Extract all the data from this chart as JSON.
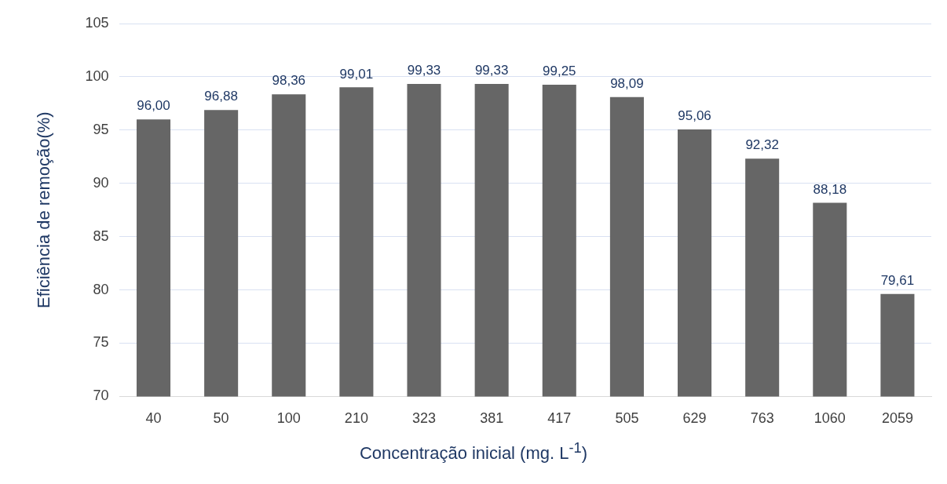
{
  "chart_data": {
    "type": "bar",
    "xlabel": "Concentração inicial (mg. L$^{-1}$)",
    "ylabel": "Eficiência de remoção(%)",
    "categories": [
      "40",
      "50",
      "100",
      "210",
      "323",
      "381",
      "417",
      "505",
      "629",
      "763",
      "1060",
      "2059"
    ],
    "values": [
      96.0,
      96.88,
      98.36,
      99.01,
      99.33,
      99.33,
      99.25,
      98.09,
      95.06,
      92.32,
      88.18,
      79.61
    ],
    "value_labels": [
      "96,00",
      "96,88",
      "98,36",
      "99,01",
      "99,33",
      "99,33",
      "99,25",
      "98,09",
      "95,06",
      "92,32",
      "88,18",
      "79,61"
    ],
    "color": "#666666",
    "ylim": [
      70,
      105
    ],
    "yticks": [
      70,
      75,
      80,
      85,
      90,
      95,
      100,
      105
    ],
    "grid": "y",
    "legend": false
  }
}
